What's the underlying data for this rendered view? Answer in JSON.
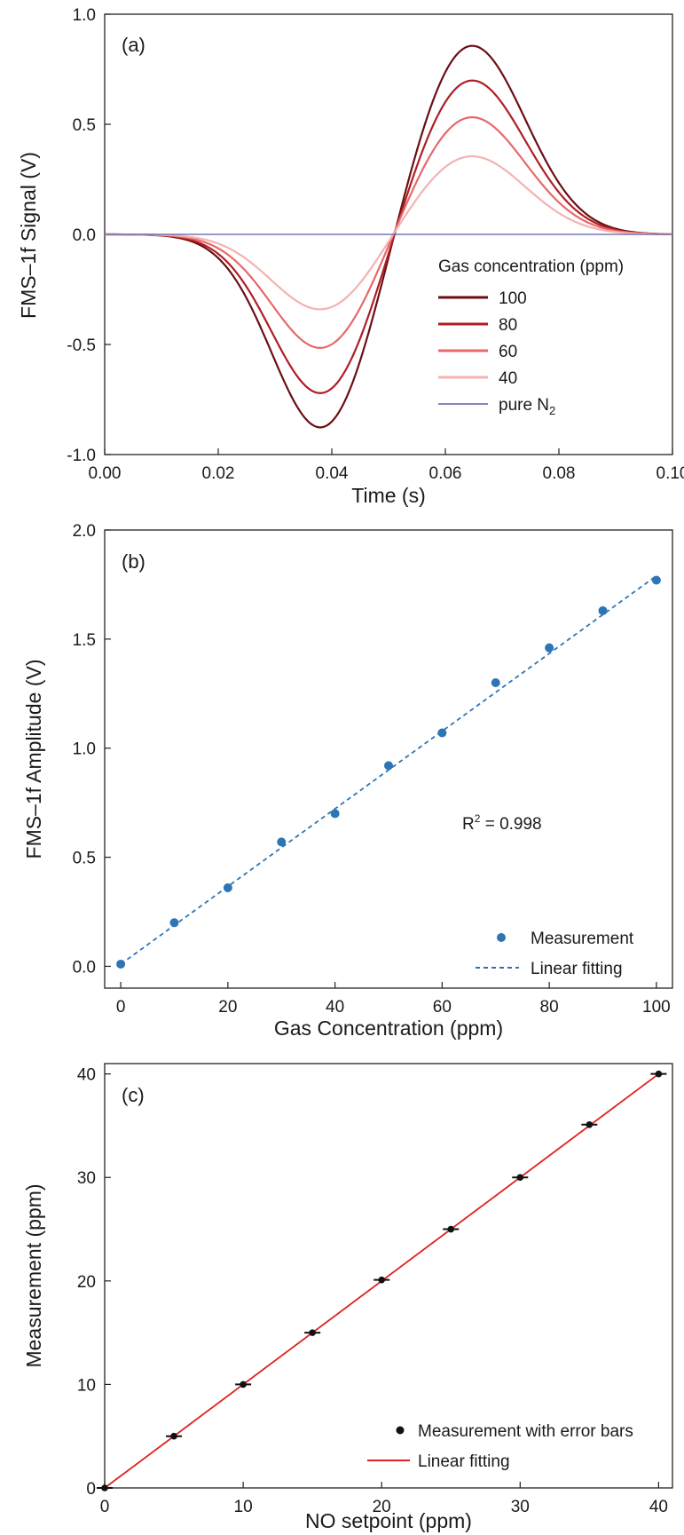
{
  "chart_data": [
    {
      "type": "line",
      "panel_label": "(a)",
      "xlabel": "Time (s)",
      "ylabel": "FMS–1f Signal (V)",
      "xlim": [
        0.0,
        0.1
      ],
      "ylim": [
        -1.0,
        1.0
      ],
      "x_ticks": [
        "0.00",
        "0.02",
        "0.04",
        "0.06",
        "0.08",
        "0.10"
      ],
      "y_ticks": [
        "1.0",
        "0.5",
        "0.0",
        "-0.5",
        "-1.0"
      ],
      "legend_title": "Gas concentration (ppm)",
      "legend_position": "lower-right",
      "series": [
        {
          "name": "100",
          "label": "100",
          "color": "#6b0f14",
          "min": -0.9,
          "max": 0.87
        },
        {
          "name": "80",
          "label": "80",
          "color": "#b01e24",
          "min": -0.74,
          "max": 0.71
        },
        {
          "name": "60",
          "label": "60",
          "color": "#e8686a",
          "min": -0.53,
          "max": 0.54
        },
        {
          "name": "40",
          "label": "40",
          "color": "#f4b2b2",
          "min": -0.35,
          "max": 0.36
        },
        {
          "name": "pure N2",
          "label_main": "pure N",
          "label_sub": "2",
          "color": "#5b5ea6",
          "min": 0.0,
          "max": 0.0
        }
      ]
    },
    {
      "type": "scatter",
      "panel_label": "(b)",
      "xlabel": "Gas Concentration (ppm)",
      "ylabel": "FMS–1f Amplitude (V)",
      "xlim": [
        -3,
        103
      ],
      "ylim": [
        -0.1,
        2.0
      ],
      "x_ticks": [
        "0",
        "20",
        "40",
        "60",
        "80",
        "100"
      ],
      "y_ticks": [
        "2.0",
        "1.5",
        "1.0",
        "0.5",
        "0.0"
      ],
      "x": [
        0,
        10,
        20,
        30,
        40,
        50,
        60,
        70,
        80,
        90,
        100
      ],
      "y": [
        0.01,
        0.2,
        0.36,
        0.57,
        0.7,
        0.92,
        1.07,
        1.3,
        1.46,
        1.63,
        1.77
      ],
      "fit": {
        "label": "Linear fitting",
        "slope": 0.0178,
        "intercept": 0.01,
        "color": "#2e75b6"
      },
      "marker": {
        "label": "Measurement",
        "color": "#2e75b6"
      },
      "annotation": {
        "main": "R",
        "sup": "2",
        "rest": " = 0.998"
      },
      "legend_position": "lower-right"
    },
    {
      "type": "scatter",
      "panel_label": "(c)",
      "xlabel": "NO setpoint (ppm)",
      "ylabel": "Measurement (ppm)",
      "xlim": [
        0,
        41
      ],
      "ylim": [
        0,
        41
      ],
      "x_ticks": [
        "0",
        "10",
        "20",
        "30",
        "40"
      ],
      "y_ticks": [
        "40",
        "30",
        "20",
        "10",
        "0"
      ],
      "x": [
        0,
        5,
        10,
        15,
        20,
        25,
        30,
        35,
        40
      ],
      "y": [
        0,
        5,
        10,
        15,
        20.1,
        25,
        30,
        35.1,
        40
      ],
      "error": [
        0.2,
        0.2,
        0.2,
        0.2,
        0.2,
        0.2,
        0.2,
        0.2,
        0.2
      ],
      "fit": {
        "label": "Linear fitting",
        "slope": 1.0,
        "intercept": 0.0,
        "color": "#e02020"
      },
      "marker": {
        "label": "Measurement with error bars",
        "color": "#111111"
      },
      "legend_position": "lower-right"
    }
  ]
}
